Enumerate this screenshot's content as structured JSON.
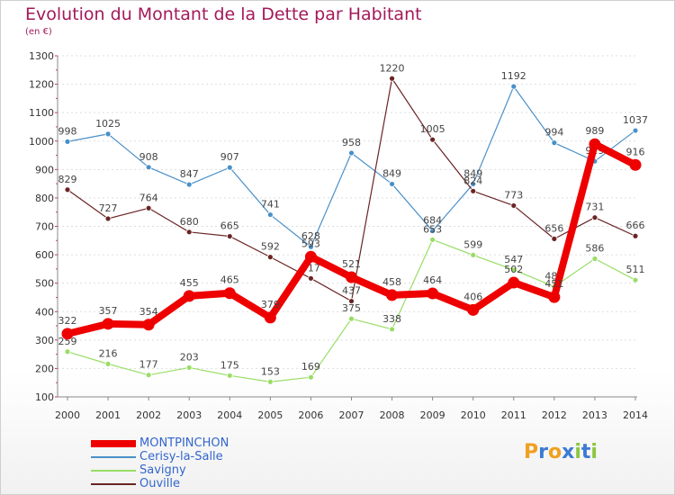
{
  "header": {
    "title": "Evolution du Montant de la Dette par Habitant",
    "subtitle": "(en €)"
  },
  "colors": {
    "title": "#a3195b",
    "axis": "#333333",
    "grid": "#dddddd",
    "legend_text": "#3366cc"
  },
  "logo": {
    "text": "Proxiti",
    "letter_colors": [
      "#f0a020",
      "#3a7bd5",
      "#f0a020",
      "#3a7bd5",
      "#8cc63f",
      "#3a7bd5",
      "#8cc63f"
    ]
  },
  "chart_data": {
    "type": "line",
    "x": [
      "2000",
      "2001",
      "2002",
      "2003",
      "2004",
      "2005",
      "2006",
      "2007",
      "2008",
      "2009",
      "2010",
      "2011",
      "2012",
      "2013",
      "2014"
    ],
    "ylim": [
      100,
      1300
    ],
    "yticks": [
      100,
      200,
      300,
      400,
      500,
      600,
      700,
      800,
      900,
      1000,
      1100,
      1200,
      1300
    ],
    "grid": "horizontal dashed",
    "legend_position": "bottom-left",
    "series": [
      {
        "name": "Cerisy-la-Salle",
        "color": "#4a90c8",
        "width": 1.2,
        "values": [
          998,
          1025,
          908,
          847,
          907,
          741,
          628,
          958,
          849,
          684,
          849,
          1192,
          994,
          929,
          1037
        ],
        "labels": [
          "998",
          "1025",
          "908",
          "847",
          "907",
          "741",
          "628",
          "958",
          "849",
          "684",
          "849",
          "1192",
          "994",
          "929",
          "1037"
        ]
      },
      {
        "name": "Ouville",
        "color": "#6b2424",
        "width": 1.2,
        "values": [
          829,
          727,
          764,
          680,
          665,
          592,
          517,
          437,
          1220,
          1005,
          824,
          773,
          656,
          731,
          666
        ],
        "labels": [
          "829",
          "727",
          "764",
          "680",
          "665",
          "592",
          "517",
          "437",
          "1220",
          "1005",
          "824",
          "773",
          "656",
          "731",
          "666"
        ]
      },
      {
        "name": "Savigny",
        "color": "#99dd66",
        "width": 1.2,
        "values": [
          259,
          216,
          177,
          203,
          175,
          153,
          169,
          375,
          338,
          653,
          599,
          547,
          488,
          586,
          511
        ],
        "labels": [
          "259",
          "216",
          "177",
          "203",
          "175",
          "153",
          "169",
          "375",
          "338",
          "653",
          "599",
          "547",
          "488",
          "586",
          "511"
        ]
      },
      {
        "name": "MONTPINCHON",
        "color": "#ee0000",
        "width": 8,
        "values": [
          322,
          357,
          354,
          455,
          465,
          379,
          593,
          521,
          458,
          464,
          406,
          502,
          451,
          989,
          916
        ],
        "labels": [
          "322",
          "357",
          "354",
          "455",
          "465",
          "379",
          "593",
          "521",
          "458",
          "464",
          "406",
          "502",
          "451",
          "989",
          "916"
        ]
      }
    ],
    "legend_order": [
      "MONTPINCHON",
      "Cerisy-la-Salle",
      "Savigny",
      "Ouville"
    ]
  }
}
